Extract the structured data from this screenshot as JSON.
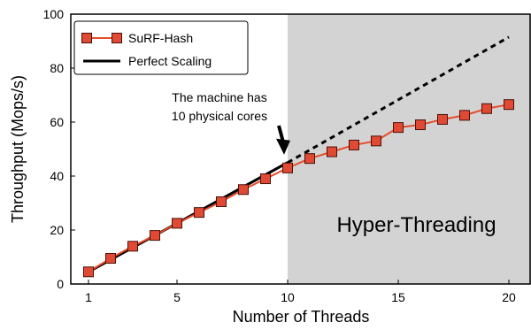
{
  "chart_data": {
    "type": "line",
    "xlabel": "Number of Threads",
    "ylabel": "Throughput (Mops/s)",
    "xlim": [
      0.2,
      21
    ],
    "ylim": [
      0,
      100
    ],
    "x_ticks": [
      1,
      5,
      10,
      15,
      20
    ],
    "y_ticks": [
      0,
      20,
      40,
      60,
      80,
      100
    ],
    "grid": false,
    "legend_position": "top-left",
    "shaded_region": {
      "x_range": [
        10,
        21
      ],
      "label": "Hyper-Threading",
      "color": "#d3d3d3"
    },
    "annotation": {
      "lines": [
        "The machine has",
        "10 physical cores"
      ],
      "points_to": {
        "x": 10,
        "y": 46
      }
    },
    "series": [
      {
        "name": "SuRF-Hash",
        "style": "line-square-marker",
        "line_color": "#e64b2a",
        "marker_fill": "#e04a35",
        "marker_edge": "#4a1208",
        "x": [
          1,
          2,
          3,
          4,
          5,
          6,
          7,
          8,
          9,
          10,
          11,
          12,
          13,
          14,
          15,
          16,
          17,
          18,
          19,
          20
        ],
        "y": [
          4.5,
          9.5,
          14,
          18,
          22.5,
          26.5,
          30.5,
          35,
          39,
          43,
          46.5,
          49,
          51.5,
          53,
          58,
          59,
          61,
          62.5,
          65,
          66.5
        ]
      },
      {
        "name": "Perfect Scaling",
        "style": "solid-then-dashed",
        "line_color": "#000000",
        "x": [
          1,
          10,
          20
        ],
        "y": [
          4.5,
          45,
          91.5
        ],
        "dash_from_x": 10
      }
    ]
  }
}
